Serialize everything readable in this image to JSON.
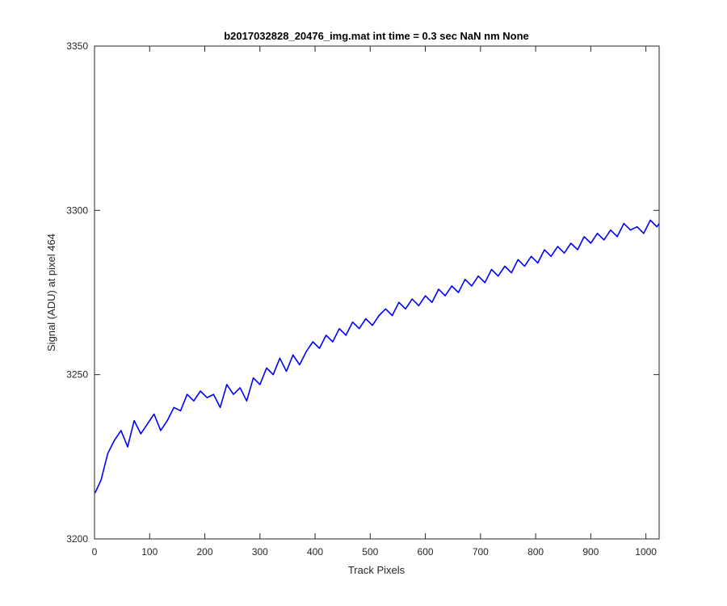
{
  "chart_data": {
    "type": "line",
    "title": "b2017032828_20476_img.mat int time = 0.3 sec  NaN nm None",
    "xlabel": "Track Pixels",
    "ylabel": "Signal (ADU) at pixel 464",
    "xlim": [
      0,
      1024
    ],
    "ylim": [
      3200,
      3350
    ],
    "xticks": [
      "0",
      "100",
      "200",
      "300",
      "400",
      "500",
      "600",
      "700",
      "800",
      "900",
      "1000"
    ],
    "yticks": [
      "3200",
      "3250",
      "3300",
      "3350"
    ],
    "grid": false,
    "legend": "none",
    "series": [
      {
        "color": "#0000ff",
        "x": [
          1,
          12,
          24,
          36,
          48,
          60,
          72,
          84,
          96,
          108,
          120,
          132,
          144,
          156,
          168,
          180,
          192,
          204,
          216,
          228,
          240,
          252,
          264,
          276,
          288,
          300,
          312,
          324,
          336,
          348,
          360,
          372,
          384,
          396,
          408,
          420,
          432,
          444,
          456,
          468,
          480,
          492,
          504,
          516,
          528,
          540,
          552,
          564,
          576,
          588,
          600,
          612,
          624,
          636,
          648,
          660,
          672,
          684,
          696,
          708,
          720,
          732,
          744,
          756,
          768,
          780,
          792,
          804,
          816,
          828,
          840,
          852,
          864,
          876,
          888,
          900,
          912,
          924,
          936,
          948,
          960,
          972,
          984,
          996,
          1008,
          1020,
          1024
        ],
        "y": [
          3214,
          3218,
          3226,
          3230,
          3233,
          3228,
          3236,
          3232,
          3235,
          3238,
          3233,
          3236,
          3240,
          3239,
          3244,
          3242,
          3245,
          3243,
          3244,
          3240,
          3247,
          3244,
          3246,
          3242,
          3249,
          3247,
          3252,
          3250,
          3255,
          3251,
          3256,
          3253,
          3257,
          3260,
          3258,
          3262,
          3260,
          3264,
          3262,
          3266,
          3264,
          3267,
          3265,
          3268,
          3270,
          3268,
          3272,
          3270,
          3273,
          3271,
          3274,
          3272,
          3276,
          3274,
          3277,
          3275,
          3279,
          3277,
          3280,
          3278,
          3282,
          3280,
          3283,
          3281,
          3285,
          3283,
          3286,
          3284,
          3288,
          3286,
          3289,
          3287,
          3290,
          3288,
          3292,
          3290,
          3293,
          3291,
          3294,
          3292,
          3296,
          3294,
          3295,
          3293,
          3297,
          3295,
          3296
        ]
      }
    ]
  }
}
